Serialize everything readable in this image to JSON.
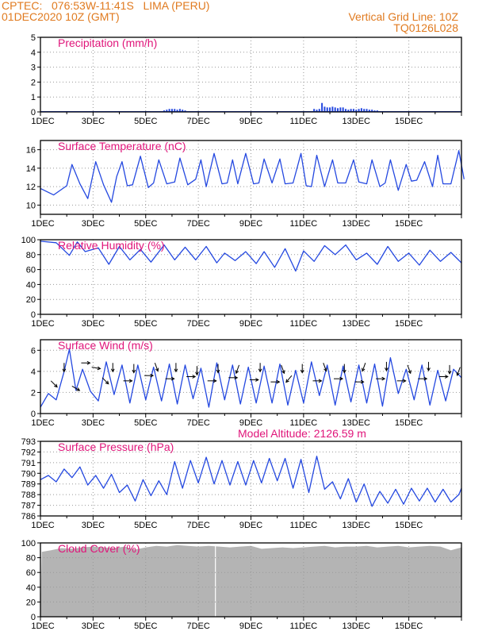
{
  "header": {
    "line1_left": "CPTEC:   076:53W-11:41S   LIMA (PERU)",
    "line2_left": "01DEC2020 10Z (GMT)",
    "line1_right": "Vertical Grid Line: 10Z",
    "line2_right": "TQ0126L028",
    "model_altitude": "Model Altitude: 2126.59 m"
  },
  "colors": {
    "header": "#e07a1f",
    "title": "#e0157a",
    "series": "#2448e0",
    "cloud": "#b4b4b4",
    "grid": "#999999",
    "frame": "#000000"
  },
  "x_ticks": [
    "1DEC",
    "3DEC",
    "5DEC",
    "7DEC",
    "9DEC",
    "11DEC",
    "13DEC",
    "15DEC"
  ],
  "chart_data": [
    {
      "type": "bar",
      "title": "Precipitation (mm/h)",
      "ylim": [
        0,
        5
      ],
      "yticks": [
        "0",
        "1",
        "2",
        "3",
        "4",
        "5"
      ],
      "grid": true,
      "x_days": [
        4.7,
        4.8,
        4.9,
        5.0,
        5.1,
        5.2,
        5.3,
        5.4,
        5.5,
        10.4,
        10.5,
        10.6,
        10.7,
        10.8,
        10.9,
        11.0,
        11.1,
        11.2,
        11.3,
        11.4,
        11.5,
        11.6,
        11.7,
        11.8,
        11.9,
        12.0,
        12.1,
        12.2,
        12.3,
        12.4,
        12.5,
        12.6,
        12.7,
        12.8,
        12.9,
        13.0
      ],
      "values": [
        0.1,
        0.15,
        0.2,
        0.2,
        0.2,
        0.15,
        0.2,
        0.15,
        0.1,
        0.2,
        0.15,
        0.2,
        0.6,
        0.35,
        0.3,
        0.3,
        0.35,
        0.3,
        0.25,
        0.3,
        0.3,
        0.2,
        0.15,
        0.2,
        0.2,
        0.15,
        0.2,
        0.25,
        0.2,
        0.2,
        0.15,
        0.15,
        0.1,
        0.1,
        0.05,
        0.05
      ]
    },
    {
      "type": "line",
      "title": "Surface Temperature (nC)",
      "ylim": [
        9,
        17
      ],
      "yticks": [
        "10",
        "12",
        "14",
        "16"
      ],
      "grid": true,
      "series": [
        {
          "name": "",
          "x_days": [
            0,
            0.5,
            1.0,
            1.2,
            1.5,
            1.8,
            2.1,
            2.4,
            2.7,
            2.9,
            3.1,
            3.3,
            3.5,
            3.8,
            4.1,
            4.3,
            4.5,
            4.8,
            5.1,
            5.3,
            5.6,
            5.9,
            6.1,
            6.3,
            6.6,
            6.9,
            7.1,
            7.3,
            7.5,
            7.8,
            8.1,
            8.3,
            8.5,
            8.8,
            9.1,
            9.3,
            9.6,
            9.9,
            10.1,
            10.3,
            10.5,
            10.8,
            11.1,
            11.3,
            11.6,
            11.9,
            12.1,
            12.4,
            12.6,
            12.9,
            13.1,
            13.3,
            13.6,
            13.9,
            14.1,
            14.3,
            14.6,
            14.9,
            15.1,
            15.3,
            15.6,
            15.9,
            16.1
          ],
          "values": [
            11.8,
            11.1,
            12.1,
            14.4,
            12.3,
            10.7,
            14.7,
            12.2,
            10.3,
            13.1,
            14.7,
            12.1,
            12.2,
            15.3,
            11.9,
            12.4,
            14.9,
            12.3,
            12.5,
            15.1,
            12.2,
            12.8,
            14.9,
            12.0,
            15.6,
            12.3,
            12.4,
            14.9,
            12.3,
            15.6,
            12.3,
            12.4,
            15.0,
            12.4,
            15.0,
            12.3,
            12.4,
            15.6,
            12.1,
            12.0,
            15.4,
            12.0,
            14.9,
            12.4,
            12.4,
            14.9,
            12.5,
            12.3,
            14.9,
            12.0,
            12.4,
            14.9,
            11.6,
            14.4,
            12.6,
            12.7,
            14.7,
            12.0,
            15.4,
            12.3,
            12.3,
            15.9,
            12.8
          ]
        }
      ]
    },
    {
      "type": "line",
      "title": "Relative Humidity (%)",
      "ylim": [
        0,
        100
      ],
      "yticks": [
        "0",
        "20",
        "40",
        "60",
        "80",
        "100"
      ],
      "grid": true,
      "series": [
        {
          "name": "",
          "x_days": [
            0,
            0.6,
            1.1,
            1.4,
            1.7,
            2.2,
            2.6,
            3.0,
            3.4,
            3.8,
            4.2,
            4.7,
            5.1,
            5.5,
            5.9,
            6.3,
            6.7,
            7.0,
            7.4,
            7.8,
            8.2,
            8.5,
            8.9,
            9.3,
            9.7,
            10.0,
            10.4,
            10.8,
            11.2,
            11.6,
            12.0,
            12.4,
            12.8,
            13.2,
            13.6,
            14.0,
            14.4,
            14.8,
            15.2,
            15.6,
            16.0
          ],
          "values": [
            98,
            96,
            79,
            97,
            84,
            89,
            67,
            91,
            73,
            87,
            70,
            93,
            73,
            90,
            73,
            91,
            69,
            82,
            72,
            84,
            68,
            84,
            63,
            88,
            58,
            85,
            71,
            92,
            80,
            93,
            73,
            82,
            67,
            91,
            71,
            82,
            66,
            86,
            71,
            83,
            69
          ]
        }
      ]
    },
    {
      "type": "line",
      "title": "Surface Wind (m/s)",
      "ylim": [
        0,
        7
      ],
      "yticks": [
        "0",
        "2",
        "4",
        "6"
      ],
      "grid": true,
      "series": [
        {
          "name": "",
          "x_days": [
            0,
            0.3,
            0.6,
            0.9,
            1.1,
            1.35,
            1.6,
            1.9,
            2.2,
            2.5,
            2.8,
            3.1,
            3.4,
            3.7,
            4.0,
            4.3,
            4.6,
            4.9,
            5.2,
            5.5,
            5.8,
            6.1,
            6.4,
            6.7,
            7.0,
            7.3,
            7.6,
            7.9,
            8.2,
            8.5,
            8.8,
            9.1,
            9.4,
            9.7,
            10.0,
            10.3,
            10.6,
            10.9,
            11.2,
            11.5,
            11.8,
            12.1,
            12.4,
            12.7,
            13.0,
            13.3,
            13.6,
            13.9,
            14.2,
            14.5,
            14.8,
            15.1,
            15.4,
            15.7,
            16.0
          ],
          "values": [
            0.6,
            1.9,
            1.3,
            4.0,
            6.1,
            2.2,
            4.2,
            2.1,
            1.2,
            4.9,
            1.8,
            4.6,
            1.0,
            4.6,
            1.3,
            4.4,
            1.2,
            4.7,
            0.9,
            4.6,
            1.4,
            4.3,
            0.6,
            4.8,
            1.3,
            4.6,
            0.9,
            4.4,
            1.0,
            4.5,
            1.0,
            4.7,
            0.8,
            4.1,
            1.0,
            4.9,
            1.7,
            4.6,
            0.8,
            4.5,
            1.1,
            4.6,
            1.0,
            4.7,
            0.7,
            5.3,
            1.9,
            4.2,
            1.3,
            4.6,
            0.8,
            4.1,
            1.2,
            4.2,
            3.4
          ]
        }
      ],
      "wind_barbs": {
        "x_days": [
          0.4,
          0.9,
          1.2,
          1.55,
          1.95,
          2.35,
          2.75,
          3.15,
          3.55,
          3.95,
          4.35,
          4.75,
          5.15,
          5.55,
          5.95,
          6.35,
          6.75,
          7.15,
          7.55,
          7.95,
          8.35,
          8.75,
          9.15,
          9.55,
          9.95,
          10.35,
          10.75,
          11.15,
          11.55,
          11.95,
          12.35,
          12.75,
          13.15,
          13.55,
          13.95,
          14.35,
          14.75,
          15.15,
          15.55,
          15.95
        ],
        "speed": [
          3.1,
          4.8,
          2.6,
          4.8,
          4.4,
          3.4,
          4.8,
          3.1,
          4.7,
          3.6,
          4.8,
          3.3,
          4.8,
          3.5,
          4.5,
          3.1,
          4.7,
          3.4,
          4.6,
          3.2,
          4.8,
          3.0,
          4.6,
          3.6,
          4.7,
          3.1,
          4.8,
          3.3,
          4.7,
          3.0,
          4.8,
          3.3,
          4.9,
          3.1,
          4.6,
          3.3,
          4.9,
          3.5,
          4.6,
          4.4
        ],
        "direction_deg": [
          135,
          180,
          120,
          90,
          100,
          135,
          180,
          90,
          180,
          90,
          160,
          90,
          180,
          90,
          180,
          90,
          180,
          90,
          200,
          90,
          180,
          90,
          160,
          220,
          180,
          90,
          160,
          90,
          180,
          90,
          200,
          90,
          180,
          90,
          160,
          90,
          180,
          90,
          180,
          200
        ]
      }
    },
    {
      "type": "line",
      "title": "Surface Pressure (hPa)",
      "ylim": [
        786,
        793
      ],
      "yticks": [
        "786",
        "787",
        "788",
        "789",
        "790",
        "791",
        "792",
        "793"
      ],
      "grid": true,
      "series": [
        {
          "name": "",
          "x_days": [
            0,
            0.3,
            0.6,
            0.9,
            1.2,
            1.5,
            1.8,
            2.1,
            2.4,
            2.7,
            3.0,
            3.3,
            3.6,
            3.9,
            4.2,
            4.5,
            4.8,
            5.1,
            5.4,
            5.7,
            6.0,
            6.3,
            6.6,
            6.9,
            7.2,
            7.5,
            7.8,
            8.1,
            8.4,
            8.7,
            9.0,
            9.3,
            9.6,
            9.9,
            10.2,
            10.5,
            10.8,
            11.1,
            11.4,
            11.7,
            12.0,
            12.3,
            12.6,
            12.9,
            13.2,
            13.5,
            13.8,
            14.1,
            14.4,
            14.7,
            15.0,
            15.3,
            15.6,
            15.9,
            16.0
          ],
          "values": [
            789.4,
            789.8,
            789.2,
            790.4,
            789.6,
            790.6,
            788.9,
            789.8,
            788.6,
            789.9,
            788.2,
            788.9,
            787.4,
            789.4,
            787.9,
            789.3,
            788.0,
            791.1,
            788.6,
            791.2,
            789.1,
            791.5,
            789.0,
            791.2,
            788.9,
            791.1,
            788.9,
            791.2,
            789.1,
            791.4,
            789.3,
            791.4,
            788.6,
            791.3,
            788.2,
            791.6,
            788.5,
            789.2,
            787.6,
            789.5,
            787.3,
            789.0,
            786.9,
            788.3,
            787.2,
            788.5,
            787.1,
            788.6,
            787.4,
            788.6,
            787.3,
            788.5,
            787.3,
            788.0,
            788.6
          ]
        }
      ]
    },
    {
      "type": "area",
      "title": "Cloud Cover (%)",
      "ylim": [
        0,
        100
      ],
      "yticks": [
        "0",
        "20",
        "40",
        "60",
        "80",
        "100"
      ],
      "grid": true,
      "x_days": [
        0,
        0.05,
        0.4,
        0.8,
        1.2,
        1.6,
        2.0,
        2.4,
        2.8,
        3.2,
        3.6,
        4.0,
        4.4,
        4.8,
        5.2,
        5.6,
        6.0,
        6.4,
        6.8,
        7.2,
        7.6,
        8.0,
        8.4,
        8.8,
        9.2,
        9.6,
        10.0,
        10.4,
        10.8,
        11.2,
        11.6,
        12.0,
        12.4,
        12.8,
        13.2,
        13.6,
        14.0,
        14.4,
        14.8,
        15.2,
        15.6,
        16.0
      ],
      "values": [
        5,
        88,
        90,
        93,
        92,
        94,
        95,
        94,
        93,
        95,
        91,
        94,
        96,
        95,
        97,
        96,
        95,
        96,
        95,
        94,
        95,
        96,
        92,
        93,
        94,
        93,
        94,
        95,
        96,
        94,
        95,
        95,
        96,
        94,
        95,
        96,
        94,
        95,
        96,
        95,
        90,
        94
      ],
      "gaps_days": [
        6.65
      ]
    }
  ]
}
